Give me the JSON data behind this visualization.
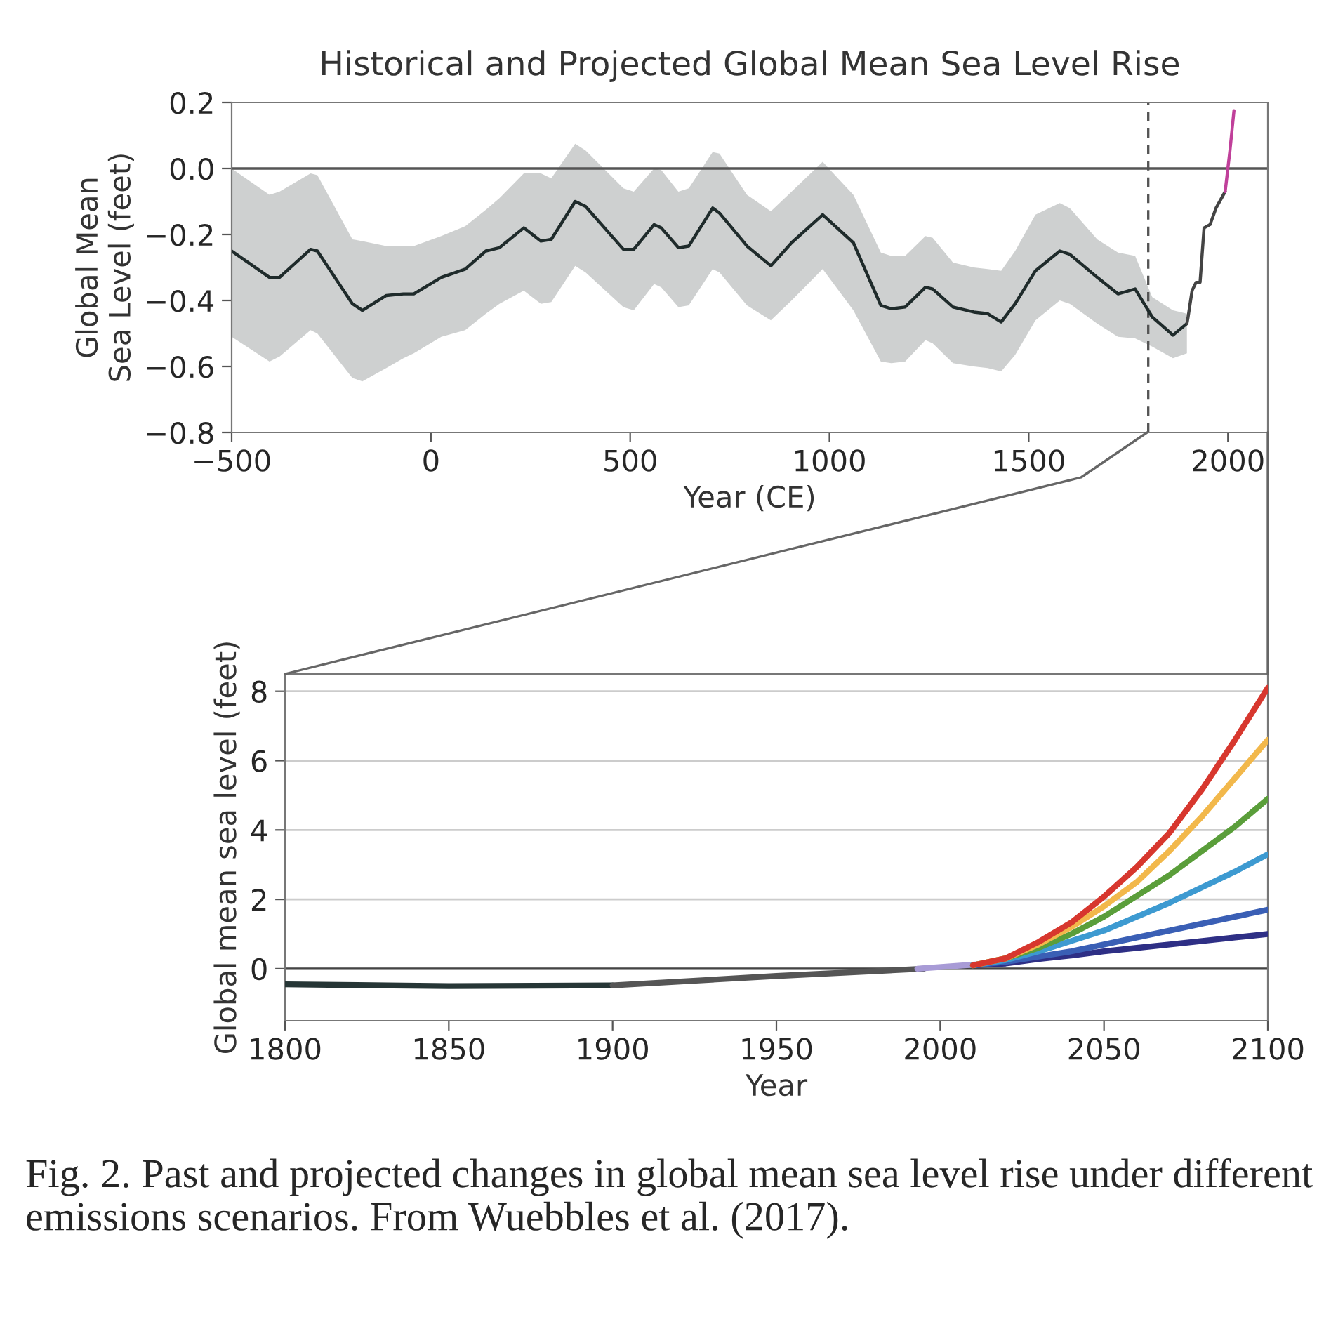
{
  "chart_data": [
    {
      "type": "line",
      "title": "Historical and Projected Global Mean Sea Level Rise",
      "xlabel": "Year (CE)",
      "ylabel": "Global Mean\nSea Level (feet)",
      "xlim": [
        -500,
        2100
      ],
      "xticks": [
        {
          "value": -500,
          "label": "−500"
        },
        0,
        500,
        1000,
        1500,
        2000
      ],
      "ylim": [
        -0.8,
        0.2
      ],
      "yticks": [
        {
          "value": -0.8,
          "label": "−0.8"
        },
        {
          "value": -0.6,
          "label": "−0.6"
        },
        {
          "value": -0.4,
          "label": "−0.4"
        },
        {
          "value": -0.2,
          "label": "−0.2"
        },
        {
          "value": 0,
          "label": "0.0"
        },
        {
          "value": 0.2,
          "label": "0.2"
        }
      ],
      "grid": false,
      "legend": false,
      "ref_lines": [
        {
          "axis": "y",
          "value": 0,
          "color": "#555555",
          "line_style": "solid"
        },
        {
          "axis": "x",
          "value": 1800,
          "color": "#555555",
          "line_style": "dashed"
        }
      ],
      "series": [
        {
          "color": "#1f2b2b",
          "x": [
            -500,
            -405,
            -380,
            -302,
            -285,
            -197,
            -172,
            -112,
            -69,
            -43,
            26,
            86,
            138,
            172,
            233,
            276,
            302,
            362,
            388,
            483,
            509,
            560,
            578,
            621,
            647,
            707,
            724,
            793,
            853,
            905,
            983,
            1060,
            1129,
            1155,
            1190,
            1241,
            1259,
            1310,
            1362,
            1397,
            1431,
            1466,
            1517,
            1578,
            1603,
            1672,
            1724,
            1767,
            1810,
            1862,
            1897
          ],
          "values": [
            -0.25,
            -0.33,
            -0.33,
            -0.245,
            -0.25,
            -0.41,
            -0.43,
            -0.385,
            -0.38,
            -0.38,
            -0.33,
            -0.305,
            -0.25,
            -0.24,
            -0.18,
            -0.22,
            -0.215,
            -0.1,
            -0.115,
            -0.245,
            -0.245,
            -0.17,
            -0.18,
            -0.24,
            -0.235,
            -0.12,
            -0.135,
            -0.235,
            -0.295,
            -0.225,
            -0.14,
            -0.225,
            -0.415,
            -0.425,
            -0.42,
            -0.36,
            -0.365,
            -0.42,
            -0.435,
            -0.44,
            -0.465,
            -0.41,
            -0.31,
            -0.25,
            -0.26,
            -0.33,
            -0.38,
            -0.365,
            -0.45,
            -0.505,
            -0.47
          ],
          "upper": [
            0.0,
            -0.08,
            -0.07,
            -0.015,
            -0.02,
            -0.215,
            -0.22,
            -0.235,
            -0.235,
            -0.235,
            -0.205,
            -0.175,
            -0.125,
            -0.09,
            -0.015,
            -0.015,
            -0.03,
            0.075,
            0.055,
            -0.06,
            -0.07,
            0.0,
            -0.005,
            -0.07,
            -0.06,
            0.05,
            0.045,
            -0.08,
            -0.13,
            -0.07,
            0.02,
            -0.08,
            -0.255,
            -0.265,
            -0.265,
            -0.205,
            -0.21,
            -0.285,
            -0.3,
            -0.305,
            -0.31,
            -0.25,
            -0.14,
            -0.105,
            -0.12,
            -0.215,
            -0.255,
            -0.265,
            -0.39,
            -0.43,
            -0.44
          ],
          "lower": [
            -0.51,
            -0.585,
            -0.57,
            -0.49,
            -0.5,
            -0.635,
            -0.645,
            -0.605,
            -0.575,
            -0.56,
            -0.51,
            -0.49,
            -0.44,
            -0.41,
            -0.37,
            -0.41,
            -0.405,
            -0.295,
            -0.315,
            -0.42,
            -0.43,
            -0.35,
            -0.36,
            -0.42,
            -0.415,
            -0.305,
            -0.315,
            -0.415,
            -0.46,
            -0.4,
            -0.305,
            -0.43,
            -0.585,
            -0.59,
            -0.585,
            -0.52,
            -0.53,
            -0.59,
            -0.6,
            -0.605,
            -0.615,
            -0.565,
            -0.46,
            -0.4,
            -0.41,
            -0.47,
            -0.51,
            -0.515,
            -0.54,
            -0.575,
            -0.56
          ]
        },
        {
          "color": "#444444",
          "x": [
            1897,
            1900,
            1910,
            1920,
            1930,
            1940,
            1955,
            1970,
            1993
          ],
          "values": [
            -0.47,
            -0.45,
            -0.37,
            -0.345,
            -0.345,
            -0.18,
            -0.17,
            -0.12,
            -0.07
          ]
        },
        {
          "color": "#c0409a",
          "x": [
            1993,
            2005,
            2015
          ],
          "values": [
            -0.07,
            0.055,
            0.175
          ]
        }
      ]
    },
    {
      "type": "line",
      "xlabel": "Year",
      "ylabel": "Global mean sea level (feet)",
      "xlim": [
        1800,
        2100
      ],
      "xticks": [
        1800,
        1850,
        1900,
        1950,
        2000,
        2050,
        2100
      ],
      "ylim": [
        -1.5,
        8.5
      ],
      "yticks": [
        0,
        2,
        4,
        6,
        8
      ],
      "grid": "y",
      "legend": false,
      "ref_lines": [
        {
          "axis": "y",
          "value": 0,
          "color": "#444444",
          "line_style": "solid"
        }
      ],
      "annotations": [
        "Fig. 2. Past and projected changes in global mean sea level rise under different emissions scenarios. From Wuebbles et al. (2017)."
      ],
      "series": [
        {
          "color": "#263636",
          "x": [
            1800,
            1850,
            1900
          ],
          "values": [
            -0.45,
            -0.5,
            -0.48
          ]
        },
        {
          "color": "#555555",
          "x": [
            1900,
            1950,
            1995
          ],
          "values": [
            -0.48,
            -0.21,
            0
          ]
        },
        {
          "color": "#a89bd6",
          "x": [
            1993,
            2015
          ],
          "values": [
            0,
            0.15
          ]
        },
        {
          "color": "#2e2f85",
          "x": [
            2010,
            2020,
            2030,
            2040,
            2050,
            2060,
            2070,
            2080,
            2090,
            2100
          ],
          "values": [
            0.1,
            0.15,
            0.28,
            0.38,
            0.5,
            0.6,
            0.7,
            0.8,
            0.9,
            1.0
          ]
        },
        {
          "color": "#3a5fb5",
          "x": [
            2010,
            2020,
            2030,
            2040,
            2050,
            2060,
            2070,
            2080,
            2090,
            2100
          ],
          "values": [
            0.1,
            0.2,
            0.35,
            0.5,
            0.7,
            0.9,
            1.1,
            1.3,
            1.5,
            1.7
          ]
        },
        {
          "color": "#3d9ad1",
          "x": [
            2010,
            2020,
            2030,
            2040,
            2050,
            2060,
            2070,
            2080,
            2090,
            2100
          ],
          "values": [
            0.1,
            0.25,
            0.5,
            0.8,
            1.1,
            1.5,
            1.9,
            2.35,
            2.8,
            3.3
          ]
        },
        {
          "color": "#5a9e3a",
          "x": [
            2010,
            2020,
            2030,
            2040,
            2050,
            2060,
            2070,
            2080,
            2090,
            2100
          ],
          "values": [
            0.1,
            0.3,
            0.6,
            1.0,
            1.5,
            2.1,
            2.7,
            3.4,
            4.1,
            4.9
          ]
        },
        {
          "color": "#f2b84b",
          "x": [
            2010,
            2020,
            2030,
            2040,
            2050,
            2060,
            2070,
            2080,
            2090,
            2100
          ],
          "values": [
            0.1,
            0.3,
            0.7,
            1.2,
            1.8,
            2.5,
            3.4,
            4.4,
            5.5,
            6.6
          ]
        },
        {
          "color": "#d7372e",
          "x": [
            2010,
            2020,
            2030,
            2040,
            2050,
            2060,
            2070,
            2080,
            2090,
            2100
          ],
          "values": [
            0.1,
            0.3,
            0.77,
            1.33,
            2.08,
            2.93,
            3.92,
            5.18,
            6.6,
            8.1
          ]
        }
      ]
    }
  ]
}
